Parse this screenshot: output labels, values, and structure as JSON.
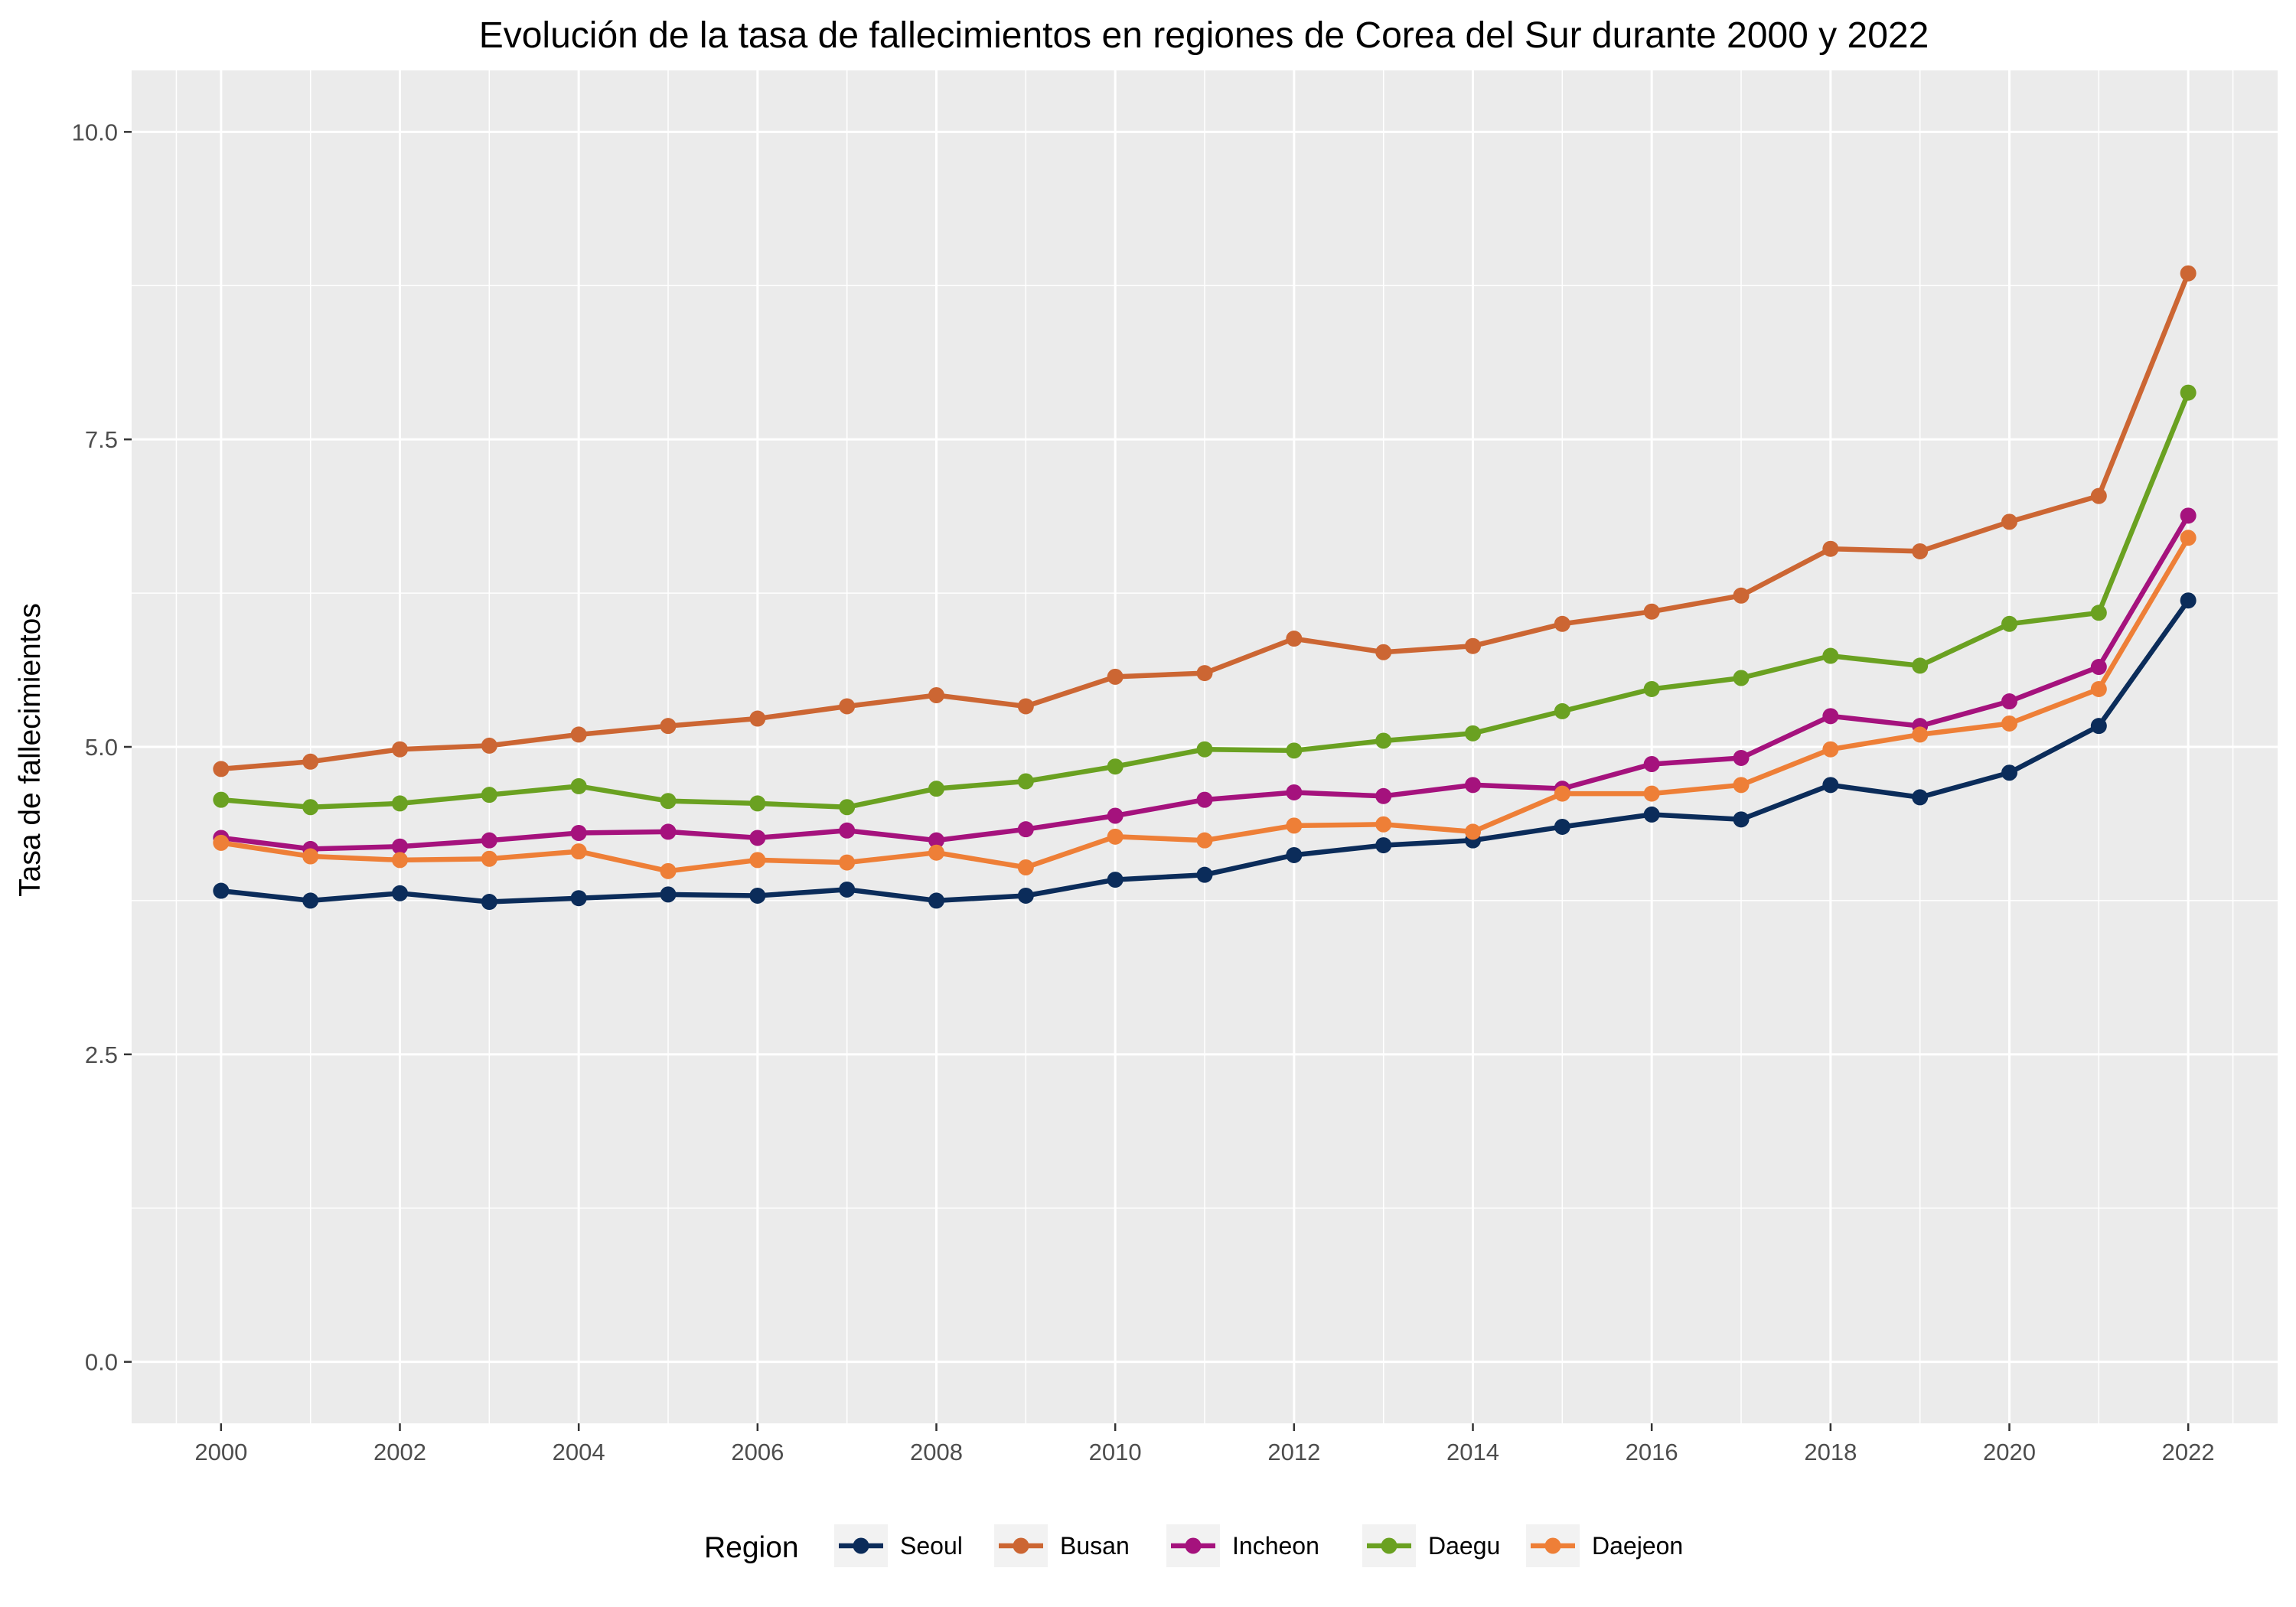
{
  "chart_data": {
    "type": "line",
    "title": "Evolución de la tasa de fallecimientos en regiones de Corea del Sur durante 2000 y 2022",
    "xlabel": "",
    "ylabel": "Tasa de fallecimientos",
    "xlim": [
      1999,
      2023
    ],
    "ylim": [
      -0.5,
      10.5
    ],
    "x_ticks": [
      2000,
      2002,
      2004,
      2006,
      2008,
      2010,
      2012,
      2014,
      2016,
      2018,
      2020,
      2022
    ],
    "y_ticks": [
      0,
      2.5,
      5,
      7.5,
      10
    ],
    "y_tick_labels": [
      "0.0",
      "2.5",
      "5.0",
      "7.5",
      "10.0"
    ],
    "grid": true,
    "legend_title": "Region",
    "legend_position": "bottom",
    "x": [
      2000,
      2001,
      2002,
      2003,
      2004,
      2005,
      2006,
      2007,
      2008,
      2009,
      2010,
      2011,
      2012,
      2013,
      2014,
      2015,
      2016,
      2017,
      2018,
      2019,
      2020,
      2021,
      2022
    ],
    "series": [
      {
        "name": "Seoul",
        "color": "#0b2c5a",
        "values": [
          3.83,
          3.75,
          3.81,
          3.74,
          3.77,
          3.8,
          3.79,
          3.84,
          3.75,
          3.79,
          3.92,
          3.96,
          4.12,
          4.2,
          4.24,
          4.35,
          4.45,
          4.41,
          4.69,
          4.59,
          4.79,
          5.17,
          6.19
        ]
      },
      {
        "name": "Busan",
        "color": "#cc6633",
        "values": [
          4.82,
          4.88,
          4.98,
          5.01,
          5.1,
          5.17,
          5.23,
          5.33,
          5.42,
          5.33,
          5.57,
          5.6,
          5.88,
          5.77,
          5.82,
          6.0,
          6.1,
          6.23,
          6.61,
          6.59,
          6.83,
          7.04,
          8.85
        ]
      },
      {
        "name": "Incheon",
        "color": "#a5127d",
        "values": [
          4.26,
          4.17,
          4.19,
          4.24,
          4.3,
          4.31,
          4.26,
          4.32,
          4.24,
          4.33,
          4.44,
          4.57,
          4.63,
          4.6,
          4.69,
          4.66,
          4.86,
          4.91,
          5.25,
          5.17,
          5.37,
          5.65,
          6.88
        ]
      },
      {
        "name": "Daegu",
        "color": "#6aa121",
        "values": [
          4.57,
          4.51,
          4.54,
          4.61,
          4.68,
          4.56,
          4.54,
          4.51,
          4.66,
          4.72,
          4.84,
          4.98,
          4.97,
          5.05,
          5.11,
          5.29,
          5.47,
          5.56,
          5.74,
          5.66,
          6.0,
          6.09,
          7.88
        ]
      },
      {
        "name": "Daejeon",
        "color": "#ee7f37",
        "values": [
          4.22,
          4.11,
          4.08,
          4.09,
          4.15,
          3.99,
          4.08,
          4.06,
          4.14,
          4.02,
          4.27,
          4.24,
          4.36,
          4.37,
          4.31,
          4.62,
          4.62,
          4.69,
          4.98,
          5.1,
          5.19,
          5.47,
          6.7
        ]
      }
    ]
  }
}
